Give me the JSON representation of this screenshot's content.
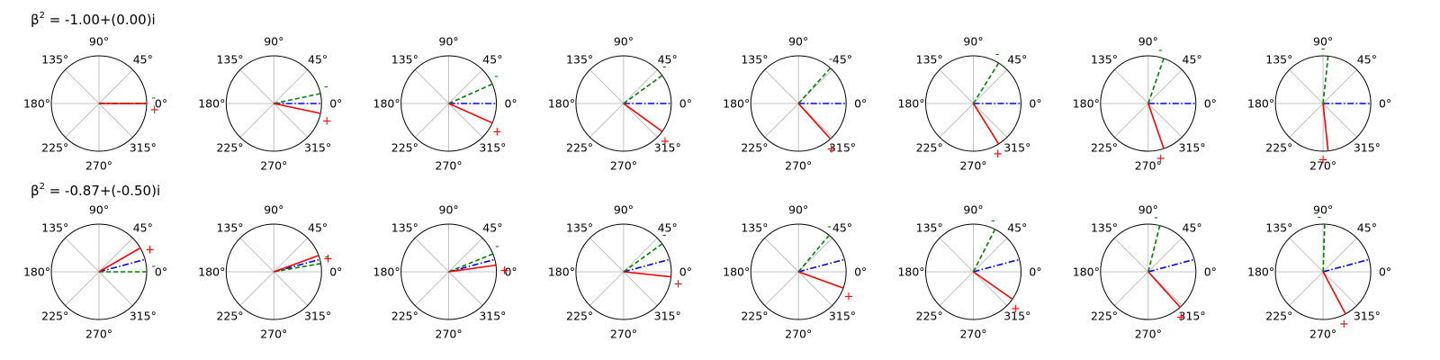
{
  "colors": {
    "plus": "#ff0000",
    "minus": "#008000",
    "mid": "#0000ff",
    "grid": "#b0b0b0",
    "frame": "#000000"
  },
  "chart_data": {
    "type": "polar",
    "angle_tick_labels": [
      "0°",
      "45°",
      "90°",
      "135°",
      "180°",
      "225°",
      "270°",
      "315°"
    ],
    "grid": true,
    "sign_labels": {
      "plus": "+",
      "minus": "-"
    },
    "rows": [
      {
        "title_prefix": "β",
        "title_sup": "2",
        "title_value": " = -1.00+(0.00)i",
        "panels": [
          {
            "plus_deg": 0,
            "minus_deg": 0,
            "mid_deg": 0
          },
          {
            "plus_deg": -12,
            "minus_deg": 12,
            "mid_deg": 0
          },
          {
            "plus_deg": -24,
            "minus_deg": 24,
            "mid_deg": 0
          },
          {
            "plus_deg": -36,
            "minus_deg": 36,
            "mid_deg": 0
          },
          {
            "plus_deg": -48,
            "minus_deg": 48,
            "mid_deg": 0
          },
          {
            "plus_deg": -58,
            "minus_deg": 58,
            "mid_deg": 0
          },
          {
            "plus_deg": -71,
            "minus_deg": 71,
            "mid_deg": 0
          },
          {
            "plus_deg": -84,
            "minus_deg": 84,
            "mid_deg": 0
          }
        ]
      },
      {
        "title_prefix": "β",
        "title_sup": "2",
        "title_value": " = -0.87+(-0.50)i",
        "panels": [
          {
            "plus_deg": 30,
            "minus_deg": 0,
            "mid_deg": 15
          },
          {
            "plus_deg": 20,
            "minus_deg": 10,
            "mid_deg": 15
          },
          {
            "plus_deg": 8,
            "minus_deg": 22,
            "mid_deg": 15
          },
          {
            "plus_deg": -6,
            "minus_deg": 36,
            "mid_deg": 15
          },
          {
            "plus_deg": -20,
            "minus_deg": 50,
            "mid_deg": 15
          },
          {
            "plus_deg": -35,
            "minus_deg": 63,
            "mid_deg": 15
          },
          {
            "plus_deg": -48,
            "minus_deg": 76,
            "mid_deg": 15
          },
          {
            "plus_deg": -62,
            "minus_deg": 88,
            "mid_deg": 15
          }
        ]
      }
    ]
  }
}
